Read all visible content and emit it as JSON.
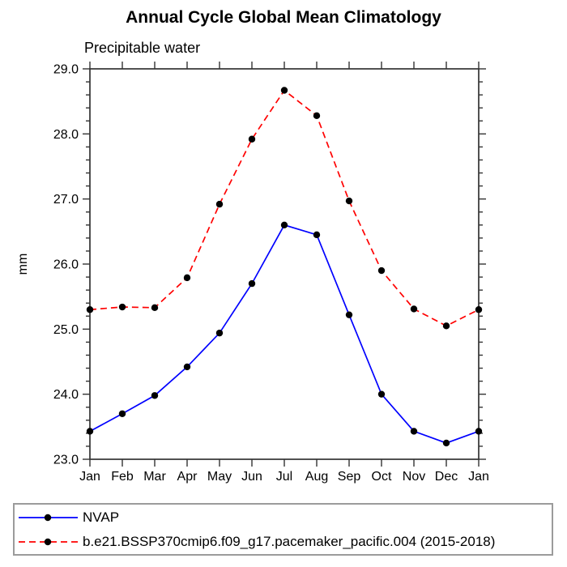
{
  "page": {
    "title": "Annual Cycle Global Mean Climatology",
    "subtitle": "Precipitable water"
  },
  "chart_data": {
    "type": "line",
    "title": "Annual Cycle Global Mean Climatology",
    "subtitle": "Precipitable water",
    "xlabel": "",
    "ylabel": "mm",
    "categories": [
      "Jan",
      "Feb",
      "Mar",
      "Apr",
      "May",
      "Jun",
      "Jul",
      "Aug",
      "Sep",
      "Oct",
      "Nov",
      "Dec",
      "Jan"
    ],
    "ylim": [
      23.0,
      29.0
    ],
    "ytick_major": 1.0,
    "ytick_minor": 0.2,
    "grid": false,
    "frame": true,
    "legend_position": "bottom-left-box",
    "axis_color": "#333333",
    "marker_color": "#000000",
    "series": [
      {
        "name": "NVAP",
        "color": "#0000ff",
        "line_style": "solid",
        "marker": "circle",
        "values": [
          23.43,
          23.7,
          23.98,
          24.42,
          24.94,
          25.7,
          26.6,
          26.45,
          25.22,
          24.0,
          23.43,
          23.25,
          23.43
        ]
      },
      {
        "name": "b.e21.BSSP370cmip6.f09_g17.pacemaker_pacific.004 (2015-2018)",
        "color": "#ff0000",
        "line_style": "dashed",
        "marker": "circle",
        "values": [
          25.3,
          25.34,
          25.33,
          25.79,
          26.92,
          27.92,
          28.67,
          28.28,
          26.97,
          25.9,
          25.31,
          25.05,
          25.3
        ]
      }
    ]
  }
}
